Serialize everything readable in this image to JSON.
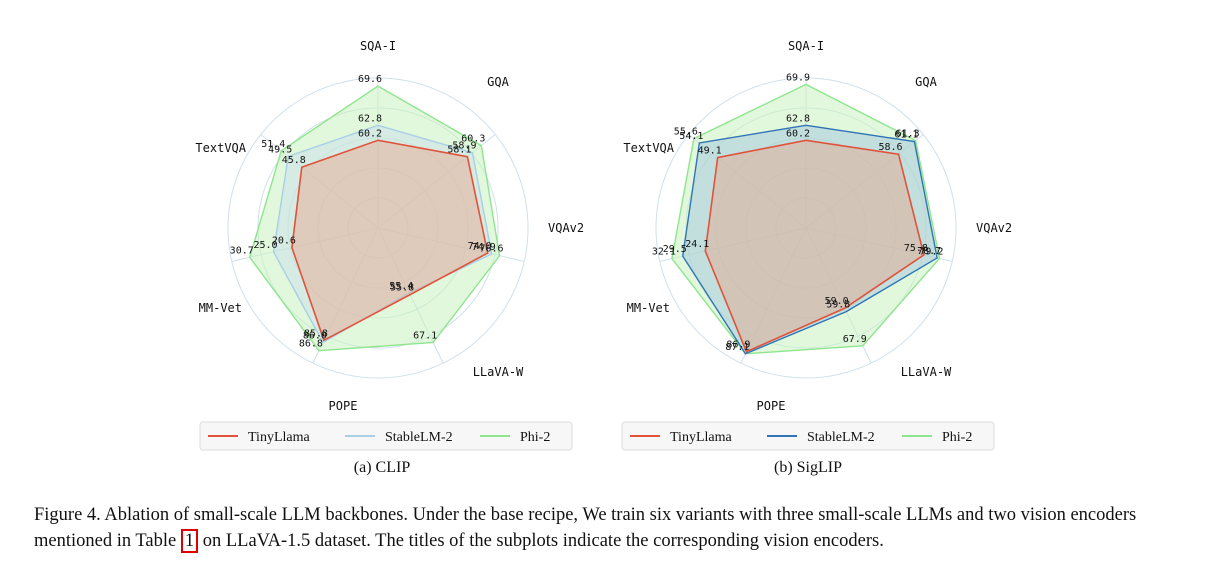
{
  "chart_data": [
    {
      "type": "radar",
      "subtitle": "(a) CLIP",
      "axes": [
        "SQA-I",
        "GQA",
        "VQAv2",
        "LLaVA-W",
        "POPE",
        "MM-Vet",
        "TextVQA"
      ],
      "series": [
        {
          "name": "TinyLlama",
          "values": [
            60.2,
            58.1,
            74.0,
            55.8,
            85.8,
            20.6,
            45.8
          ]
        },
        {
          "name": "StableLM-2",
          "values": [
            62.8,
            58.9,
            74.9,
            55.4,
            86.0,
            25.0,
            49.5
          ]
        },
        {
          "name": "Phi-2",
          "values": [
            69.6,
            60.3,
            76.6,
            67.1,
            86.8,
            30.7,
            51.4
          ]
        }
      ],
      "value_labels": [
        [
          "60.2",
          "58.1",
          "74.0",
          "55.8",
          "85.8",
          "20.6",
          "45.8"
        ],
        [
          "62.8",
          "58.9",
          "74.9",
          "55.4",
          "86.0",
          "25.0",
          "49.5"
        ],
        [
          "69.6",
          "60.3",
          "76.6",
          "67.1",
          "86.8",
          "30.7",
          "51.4"
        ]
      ],
      "legend": [
        "TinyLlama",
        "StableLM-2",
        "Phi-2"
      ]
    },
    {
      "type": "radar",
      "subtitle": "(b) SigLIP",
      "axes": [
        "SQA-I",
        "GQA",
        "VQAv2",
        "LLaVA-W",
        "POPE",
        "MM-Vet",
        "TextVQA"
      ],
      "series": [
        {
          "name": "TinyLlama",
          "values": [
            60.2,
            58.6,
            75.8,
            59.0,
            86.9,
            24.1,
            49.1
          ]
        },
        {
          "name": "StableLM-2",
          "values": [
            62.8,
            61.1,
            78.7,
            59.8,
            87.1,
            29.5,
            54.1
          ]
        },
        {
          "name": "Phi-2",
          "values": [
            69.9,
            61.3,
            79.2,
            67.9,
            87.1,
            32.1,
            55.6
          ]
        }
      ],
      "value_labels": [
        [
          "60.2",
          "58.6",
          "75.8",
          "59.0",
          "86.9",
          "24.1",
          "49.1"
        ],
        [
          "62.8",
          "61.1",
          "78.7",
          "59.8",
          "",
          "29.5",
          "54.1"
        ],
        [
          "69.9",
          "61.3",
          "79.2",
          "67.9",
          "87.1",
          "32.1",
          "55.6"
        ]
      ],
      "legend": [
        "TinyLlama",
        "StableLM-2",
        "Phi-2"
      ]
    }
  ],
  "colors": {
    "tinyllama": "#e0533a",
    "stablelm_a": "#a9cfe6",
    "stablelm_b": "#2f74b5",
    "phi2": "#8fe58f",
    "phi2_fill": "#c9f3c0",
    "grid": "#cfe0ec"
  },
  "caption": {
    "before": "Figure 4. Ablation of small-scale LLM backbones. Under the base recipe, We train six variants with three small-scale LLMs and two vision encoders mentioned in Table ",
    "ref": "1",
    "after": " on LLaVA-1.5 dataset. The titles of the subplots indicate the corresponding vision encoders."
  }
}
